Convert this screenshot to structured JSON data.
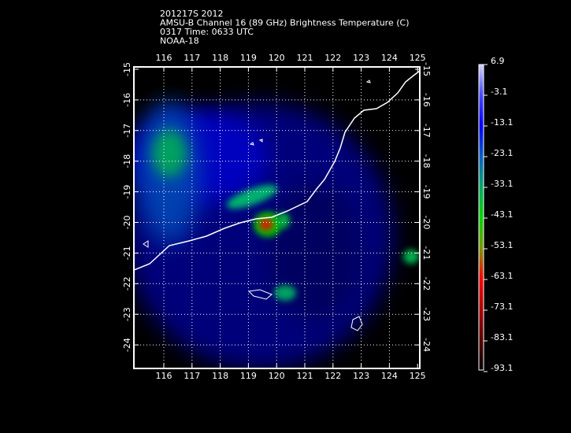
{
  "header": {
    "lines": [
      "201217S 2012",
      "AMSU-B Channel 16 (89 GHz) Brightness Temperature (C)",
      "0317 Time: 0633 UTC",
      "NOAA-18"
    ]
  },
  "map": {
    "lon_labels": [
      "116",
      "117",
      "118",
      "119",
      "120",
      "121",
      "122",
      "123",
      "124",
      "125"
    ],
    "lat_labels": [
      "-15",
      "-16",
      "-17",
      "-18",
      "-19",
      "-20",
      "-21",
      "-22",
      "-23",
      "-24"
    ]
  },
  "colorbar": {
    "labels": [
      "6.9",
      "-3.1",
      "-13.1",
      "-23.1",
      "-33.1",
      "-43.1",
      "-53.1",
      "-63.1",
      "-73.1",
      "-83.1",
      "-93.1"
    ]
  }
}
